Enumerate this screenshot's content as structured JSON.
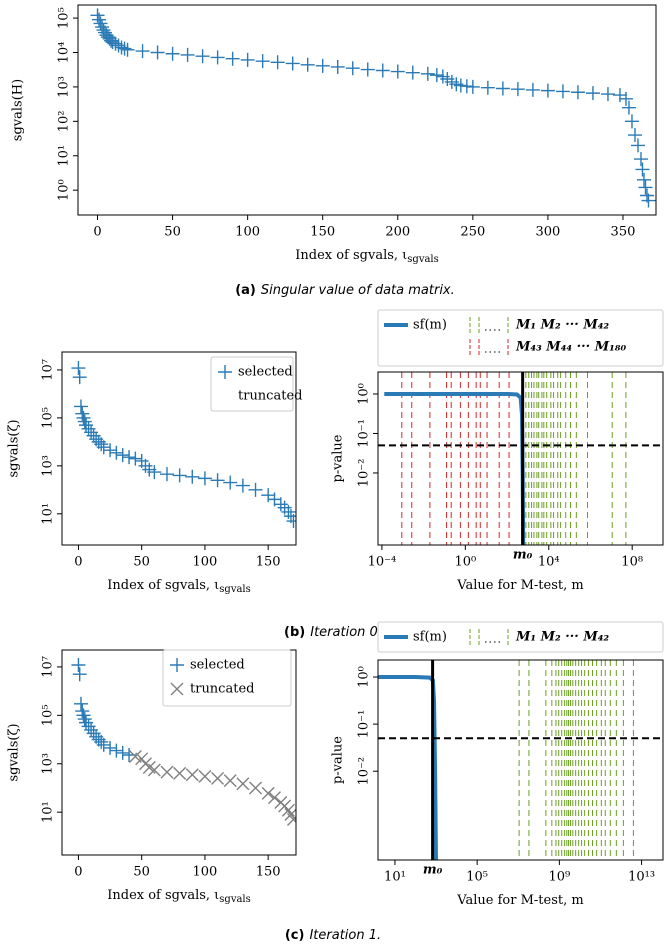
{
  "chart_data": [
    {
      "type": "scatter",
      "ylabel": "sgvals(H)",
      "xlabel": "Index of sgvals, ι",
      "xlabel_sub": "sgvals",
      "caption_label": "(a)",
      "caption": "Singular value of data matrix.",
      "xlim": [
        -13,
        372
      ],
      "ylim": [
        0.19,
        240000
      ],
      "ylog": true,
      "xticks": [
        0,
        50,
        100,
        150,
        200,
        250,
        300,
        350
      ],
      "yticks": [
        {
          "value": 1,
          "label": "10⁰"
        },
        {
          "value": 10,
          "label": "10¹"
        },
        {
          "value": 100,
          "label": "10²"
        },
        {
          "value": 1000,
          "label": "10³"
        },
        {
          "value": 10000,
          "label": "10⁴"
        },
        {
          "value": 100000,
          "label": "10⁵"
        }
      ],
      "series": [
        {
          "color": "#2a7ab5",
          "marker": "+",
          "x": [
            0,
            1,
            2,
            3,
            4,
            5,
            6,
            7,
            8,
            9,
            10,
            12,
            14,
            16,
            18,
            20,
            30,
            40,
            50,
            60,
            70,
            80,
            90,
            100,
            110,
            120,
            130,
            140,
            150,
            160,
            170,
            180,
            190,
            200,
            210,
            220,
            226,
            230,
            233,
            236,
            239,
            242,
            246,
            250,
            260,
            270,
            280,
            290,
            300,
            310,
            320,
            330,
            340,
            348,
            352,
            354,
            356,
            358,
            360,
            362,
            363,
            364,
            365,
            366,
            367
          ],
          "values": [
            120000,
            90000,
            70000,
            55000,
            45000,
            38000,
            32000,
            28000,
            25000,
            22000,
            20000,
            18000,
            16000,
            14000,
            13000,
            12000,
            11000,
            10000,
            9200,
            8500,
            7800,
            7200,
            6600,
            6100,
            5600,
            5200,
            4800,
            4400,
            4100,
            3800,
            3500,
            3200,
            3000,
            2800,
            2600,
            2400,
            2200,
            2000,
            1700,
            1400,
            1200,
            1100,
            1050,
            1000,
            950,
            900,
            860,
            820,
            780,
            740,
            700,
            660,
            620,
            580,
            450,
            250,
            100,
            40,
            20,
            8,
            4,
            2,
            1.2,
            0.7,
            0.5
          ]
        }
      ]
    },
    {
      "type": "scatter",
      "ylabel": "sgvals(ζ)",
      "xlabel": "Index of sgvals, ι",
      "xlabel_sub": "sgvals",
      "caption_label": "(b)",
      "caption": "Iteration 0.",
      "xlim": [
        -13,
        172
      ],
      "ylim": [
        0.5,
        56000000
      ],
      "ylog": true,
      "xticks": [
        0,
        50,
        100,
        150
      ],
      "yticks": [
        {
          "value": 10,
          "label": "10¹"
        },
        {
          "value": 1000,
          "label": "10³"
        },
        {
          "value": 100000,
          "label": "10⁵"
        },
        {
          "value": 10000000,
          "label": "10⁷"
        }
      ],
      "series": [
        {
          "name": "selected",
          "color": "#2a7ab5",
          "marker": "+",
          "x": [
            0,
            1,
            2,
            3,
            4,
            5,
            6,
            8,
            10,
            12,
            14,
            16,
            18,
            20,
            25,
            30,
            35,
            40,
            45,
            50,
            53,
            56,
            60,
            70,
            80,
            90,
            100,
            110,
            120,
            130,
            140,
            150,
            155,
            160,
            163,
            166,
            168,
            170
          ],
          "values": [
            12000000,
            5000000,
            300000,
            150000,
            100000,
            70000,
            50000,
            35000,
            25000,
            18000,
            13000,
            10000,
            8000,
            6000,
            4500,
            3500,
            2800,
            2300,
            2000,
            1600,
            1000,
            700,
            550,
            450,
            400,
            350,
            300,
            250,
            200,
            150,
            100,
            60,
            40,
            25,
            18,
            12,
            8,
            5
          ]
        },
        {
          "name": "truncated",
          "color": "#808080",
          "marker": "×",
          "x": [],
          "values": []
        }
      ]
    },
    {
      "type": "line",
      "ylabel": "p-value",
      "xlabel": "Value for M-test, m",
      "xlim": [
        6.5e-05,
        3000000000
      ],
      "ylim": [
        0.00015,
        3.6
      ],
      "xlog": true,
      "ylog": true,
      "xticks": [
        {
          "value": 0.0001,
          "label": "10⁻⁴"
        },
        {
          "value": 1,
          "label": "10⁰"
        },
        {
          "value": 10000,
          "label": "10⁴"
        },
        {
          "value": 100000000,
          "label": "10⁸"
        }
      ],
      "yticks": [
        {
          "value": 0.01,
          "label": "10⁻²"
        },
        {
          "value": 0.1,
          "label": "10⁻¹"
        },
        {
          "value": 1,
          "label": "10⁰"
        }
      ],
      "series": [
        {
          "name": "sf(m)",
          "color": "#2a7ab5",
          "x": [
            0.00013,
            1,
            100,
            300,
            450,
            520,
            560,
            600
          ],
          "values": [
            1,
            1,
            1,
            0.97,
            0.8,
            0.3,
            0.01,
            0.0001
          ]
        }
      ],
      "vlines": [
        {
          "name": "M₁ M₂ ··· M₄₂",
          "color": "#6b9e23",
          "values": [
            800,
            1100,
            1500,
            1950,
            2700,
            3300,
            4700,
            5800,
            8000,
            12600,
            17000,
            27000,
            37000,
            65000,
            110000,
            210000,
            720000,
            11000000,
            50000000
          ]
        },
        {
          "name": "M₄₃ M₄₄ ··· M₁₈₀",
          "color": "#d62728",
          "values": [
            0.0009,
            0.0027,
            0.02,
            0.126,
            0.21,
            0.58,
            1.4,
            3.3,
            5.2,
            11,
            42,
            125
          ]
        }
      ],
      "hline": 0.05,
      "m0": {
        "value": 560,
        "label": "m₀"
      }
    },
    {
      "type": "scatter",
      "ylabel": "sgvals(ζ)",
      "xlabel": "Index of sgvals, ι",
      "xlabel_sub": "sgvals",
      "caption_label": "(c)",
      "caption": "Iteration 1.",
      "xlim": [
        -13,
        172
      ],
      "ylim": [
        0.17,
        50000000
      ],
      "ylog": true,
      "xticks": [
        0,
        50,
        100,
        150
      ],
      "yticks": [
        {
          "value": 10,
          "label": "10¹"
        },
        {
          "value": 1000,
          "label": "10³"
        },
        {
          "value": 100000,
          "label": "10⁵"
        },
        {
          "value": 10000000,
          "label": "10⁷"
        }
      ],
      "series": [
        {
          "name": "selected",
          "color": "#2a7ab5",
          "marker": "+",
          "x": [
            0,
            1,
            2,
            3,
            4,
            5,
            6,
            8,
            10,
            12,
            14,
            16,
            18,
            20,
            25,
            30,
            35,
            40
          ],
          "values": [
            12000000,
            5000000,
            300000,
            150000,
            100000,
            70000,
            50000,
            35000,
            25000,
            18000,
            13000,
            10000,
            8000,
            6000,
            4500,
            3500,
            2800,
            2300
          ]
        },
        {
          "name": "truncated",
          "color": "#808080",
          "marker": "×",
          "x": [
            45,
            50,
            53,
            56,
            60,
            70,
            80,
            90,
            100,
            110,
            120,
            130,
            140,
            150,
            155,
            160,
            163,
            166,
            168,
            170
          ],
          "values": [
            2000,
            1600,
            1000,
            700,
            550,
            450,
            400,
            350,
            300,
            250,
            200,
            150,
            100,
            60,
            40,
            25,
            18,
            12,
            8,
            5
          ]
        }
      ]
    },
    {
      "type": "line",
      "ylabel": "p-value",
      "xlabel": "Value for M-test, m",
      "xlim": [
        1.5,
        110000000000000
      ],
      "ylim": [
        0.00013,
        2.3
      ],
      "xlog": true,
      "ylog": true,
      "xticks": [
        {
          "value": 10,
          "label": "10¹"
        },
        {
          "value": 100000,
          "label": "10⁵"
        },
        {
          "value": 1000000000,
          "label": "10⁹"
        },
        {
          "value": 10000000000000,
          "label": "10¹³"
        }
      ],
      "yticks": [
        {
          "value": 0.01,
          "label": "10⁻²"
        },
        {
          "value": 0.1,
          "label": "10⁻¹"
        },
        {
          "value": 1,
          "label": "10⁰"
        }
      ],
      "series": [
        {
          "name": "sf(m)",
          "color": "#2a7ab5",
          "x": [
            1.5,
            10,
            100,
            500,
            700,
            800,
            900,
            1000
          ],
          "values": [
            1,
            1,
            1,
            0.97,
            0.85,
            0.3,
            0.01,
            0.0001
          ]
        }
      ],
      "vlines": [
        {
          "name": "M₁ M₂ ··· M₄₂",
          "color": "#6b9e23",
          "values": [
            11000000,
            33000000,
            220000000,
            430000000,
            680000000,
            930000000,
            1300000000,
            1800000000,
            2300000000,
            2800000000,
            3500000000,
            4500000000,
            6200000000,
            8700000000,
            12000000000,
            17000000000,
            26000000000,
            41000000000,
            65000000000,
            110000000000,
            170000000000,
            300000000000,
            590000000000,
            1300000000000,
            4000000000000
          ]
        }
      ],
      "hline": 0.05,
      "m0": {
        "value": 680,
        "label": "m₀"
      }
    }
  ]
}
